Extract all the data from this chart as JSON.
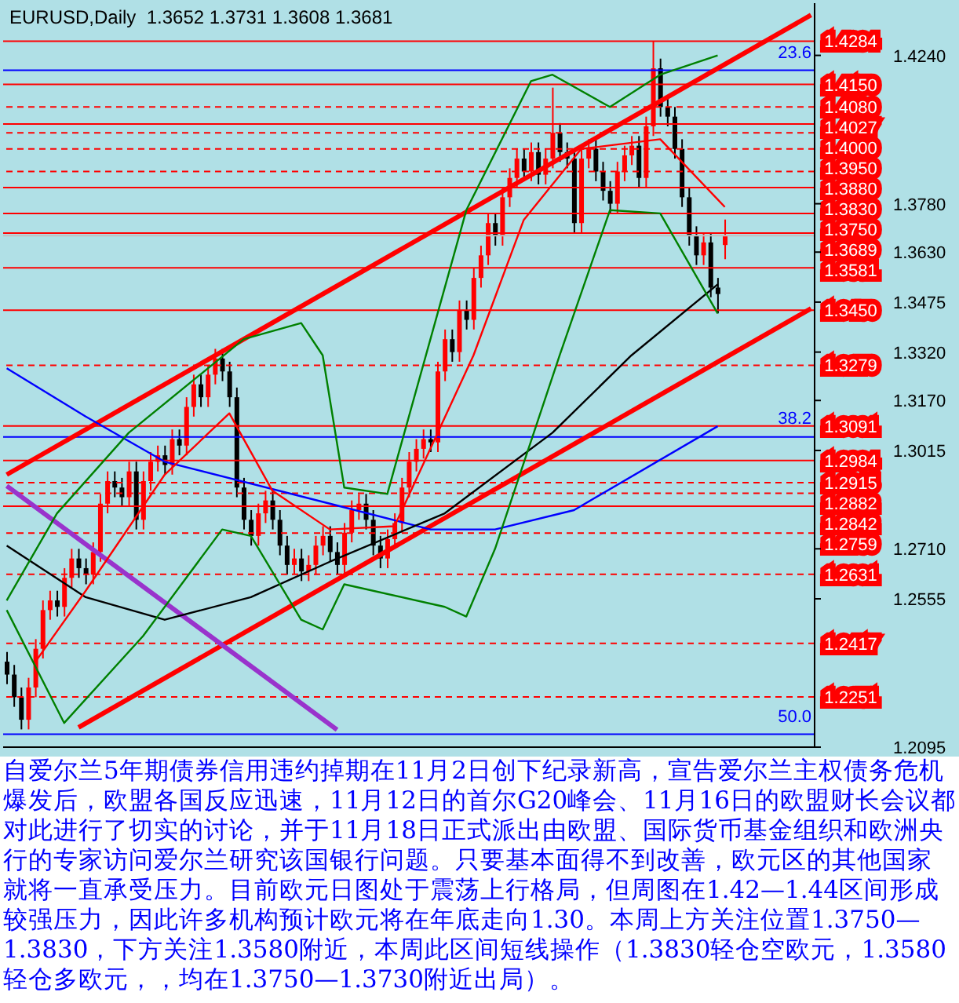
{
  "chart_data": {
    "type": "candlestick",
    "title": "EURUSD,Daily  1.3652 1.3731 1.3608 1.3681",
    "categories": [
      null,
      null,
      null,
      null,
      null,
      null,
      null,
      null,
      null,
      null,
      null,
      null,
      null,
      null,
      null,
      null,
      null,
      null,
      null,
      null,
      null,
      null,
      null,
      null,
      null,
      null,
      null,
      null,
      null,
      null,
      null,
      null,
      null,
      null,
      null,
      null,
      null,
      null,
      null,
      null,
      null,
      null,
      null,
      null,
      null,
      null,
      null,
      null,
      null,
      null,
      null,
      null,
      null,
      null,
      null,
      null,
      null,
      null,
      null,
      null,
      null,
      null,
      null,
      null,
      null,
      null,
      null,
      null,
      null,
      null,
      null,
      null,
      null,
      null,
      null,
      null,
      null,
      null,
      null,
      null,
      null,
      null,
      null,
      null,
      null,
      null,
      null,
      null,
      null,
      null,
      null,
      null,
      null,
      null,
      null,
      null,
      null,
      null,
      null,
      null,
      null,
      null,
      null,
      null,
      null,
      null,
      null,
      null,
      null,
      null,
      null,
      null,
      null
    ],
    "ohlc": [
      [
        1.236,
        1.239,
        1.229,
        1.232
      ],
      [
        1.232,
        1.235,
        1.222,
        1.225
      ],
      [
        1.225,
        1.228,
        1.215,
        1.218
      ],
      [
        1.218,
        1.231,
        1.215,
        1.228
      ],
      [
        1.228,
        1.243,
        1.225,
        1.24
      ],
      [
        1.24,
        1.255,
        1.237,
        1.252
      ],
      [
        1.252,
        1.258,
        1.249,
        1.255
      ],
      [
        1.255,
        1.258,
        1.25,
        1.253
      ],
      [
        1.253,
        1.265,
        1.25,
        1.262
      ],
      [
        1.262,
        1.271,
        1.259,
        1.268
      ],
      [
        1.268,
        1.271,
        1.262,
        1.265
      ],
      [
        1.265,
        1.268,
        1.26,
        1.263
      ],
      [
        1.263,
        1.273,
        1.26,
        1.27
      ],
      [
        1.27,
        1.288,
        1.267,
        1.285
      ],
      [
        1.285,
        1.295,
        1.282,
        1.292
      ],
      [
        1.292,
        1.295,
        1.287,
        1.29
      ],
      [
        1.29,
        1.293,
        1.284,
        1.287
      ],
      [
        1.287,
        1.298,
        1.284,
        1.295
      ],
      [
        1.295,
        1.298,
        1.277,
        1.28
      ],
      [
        1.28,
        1.295,
        1.277,
        1.292
      ],
      [
        1.292,
        1.301,
        1.289,
        1.298
      ],
      [
        1.298,
        1.303,
        1.295,
        1.3
      ],
      [
        1.3,
        1.303,
        1.294,
        1.297
      ],
      [
        1.297,
        1.308,
        1.294,
        1.305
      ],
      [
        1.305,
        1.308,
        1.3,
        1.303
      ],
      [
        1.303,
        1.318,
        1.3,
        1.315
      ],
      [
        1.315,
        1.325,
        1.312,
        1.322
      ],
      [
        1.322,
        1.325,
        1.315,
        1.318
      ],
      [
        1.318,
        1.328,
        1.315,
        1.325
      ],
      [
        1.325,
        1.333,
        1.322,
        1.33
      ],
      [
        1.33,
        1.333,
        1.323,
        1.326
      ],
      [
        1.326,
        1.329,
        1.315,
        1.318
      ],
      [
        1.318,
        1.321,
        1.287,
        1.29
      ],
      [
        1.29,
        1.293,
        1.277,
        1.28
      ],
      [
        1.28,
        1.283,
        1.272,
        1.275
      ],
      [
        1.275,
        1.285,
        1.272,
        1.282
      ],
      [
        1.282,
        1.289,
        1.279,
        1.286
      ],
      [
        1.286,
        1.289,
        1.277,
        1.28
      ],
      [
        1.28,
        1.283,
        1.269,
        1.272
      ],
      [
        1.272,
        1.275,
        1.263,
        1.266
      ],
      [
        1.266,
        1.271,
        1.263,
        1.268
      ],
      [
        1.268,
        1.271,
        1.261,
        1.264
      ],
      [
        1.264,
        1.269,
        1.261,
        1.266
      ],
      [
        1.266,
        1.275,
        1.263,
        1.272
      ],
      [
        1.272,
        1.278,
        1.269,
        1.275
      ],
      [
        1.275,
        1.278,
        1.267,
        1.27
      ],
      [
        1.27,
        1.273,
        1.263,
        1.266
      ],
      [
        1.266,
        1.279,
        1.263,
        1.276
      ],
      [
        1.276,
        1.286,
        1.273,
        1.283
      ],
      [
        1.283,
        1.288,
        1.28,
        1.285
      ],
      [
        1.285,
        1.288,
        1.277,
        1.28
      ],
      [
        1.28,
        1.283,
        1.269,
        1.272
      ],
      [
        1.272,
        1.275,
        1.265,
        1.268
      ],
      [
        1.268,
        1.277,
        1.265,
        1.274
      ],
      [
        1.274,
        1.282,
        1.271,
        1.279
      ],
      [
        1.279,
        1.293,
        1.276,
        1.29
      ],
      [
        1.29,
        1.301,
        1.287,
        1.298
      ],
      [
        1.298,
        1.305,
        1.295,
        1.302
      ],
      [
        1.302,
        1.308,
        1.299,
        1.305
      ],
      [
        1.305,
        1.308,
        1.301,
        1.304
      ],
      [
        1.304,
        1.329,
        1.301,
        1.326
      ],
      [
        1.326,
        1.339,
        1.323,
        1.336
      ],
      [
        1.336,
        1.339,
        1.329,
        1.332
      ],
      [
        1.332,
        1.348,
        1.329,
        1.345
      ],
      [
        1.345,
        1.348,
        1.339,
        1.342
      ],
      [
        1.342,
        1.358,
        1.339,
        1.355
      ],
      [
        1.355,
        1.365,
        1.352,
        1.362
      ],
      [
        1.362,
        1.375,
        1.359,
        1.372
      ],
      [
        1.372,
        1.375,
        1.365,
        1.368
      ],
      [
        1.368,
        1.383,
        1.365,
        1.38
      ],
      [
        1.38,
        1.389,
        1.377,
        1.386
      ],
      [
        1.386,
        1.395,
        1.383,
        1.392
      ],
      [
        1.392,
        1.395,
        1.385,
        1.388
      ],
      [
        1.388,
        1.397,
        1.385,
        1.394
      ],
      [
        1.394,
        1.397,
        1.384,
        1.387
      ],
      [
        1.387,
        1.395,
        1.384,
        1.392
      ],
      [
        1.392,
        1.414,
        1.389,
        1.4
      ],
      [
        1.4,
        1.403,
        1.391,
        1.394
      ],
      [
        1.394,
        1.397,
        1.389,
        1.392
      ],
      [
        1.392,
        1.395,
        1.369,
        1.372
      ],
      [
        1.372,
        1.395,
        1.369,
        1.392
      ],
      [
        1.392,
        1.398,
        1.389,
        1.395
      ],
      [
        1.395,
        1.398,
        1.385,
        1.388
      ],
      [
        1.388,
        1.391,
        1.379,
        1.382
      ],
      [
        1.382,
        1.385,
        1.375,
        1.378
      ],
      [
        1.378,
        1.391,
        1.375,
        1.388
      ],
      [
        1.388,
        1.396,
        1.385,
        1.393
      ],
      [
        1.393,
        1.399,
        1.39,
        1.396
      ],
      [
        1.396,
        1.399,
        1.383,
        1.386
      ],
      [
        1.386,
        1.405,
        1.383,
        1.402
      ],
      [
        1.402,
        1.4284,
        1.399,
        1.42
      ],
      [
        1.42,
        1.423,
        1.405,
        1.408
      ],
      [
        1.408,
        1.411,
        1.402,
        1.405
      ],
      [
        1.405,
        1.408,
        1.392,
        1.395
      ],
      [
        1.395,
        1.398,
        1.377,
        1.38
      ],
      [
        1.38,
        1.383,
        1.365,
        1.368
      ],
      [
        1.368,
        1.371,
        1.359,
        1.362
      ],
      [
        1.362,
        1.369,
        1.359,
        1.366
      ],
      [
        1.366,
        1.369,
        1.349,
        1.352
      ],
      [
        1.352,
        1.355,
        1.344,
        1.35
      ],
      [
        1.3652,
        1.3731,
        1.3608,
        1.3681
      ],
      null,
      null,
      null,
      null,
      null,
      null,
      null,
      null,
      null,
      null,
      null,
      null
    ],
    "series": [
      {
        "type": "line",
        "color": "#0000ff",
        "values": [
          1.327,
          null,
          null,
          null,
          null,
          null,
          null,
          null,
          null,
          null,
          null,
          1.312,
          null,
          null,
          null,
          null,
          null,
          null,
          null,
          null,
          null,
          null,
          1.298,
          null,
          null,
          null,
          null,
          null,
          null,
          null,
          null,
          null,
          null,
          null,
          null,
          null,
          null,
          null,
          null,
          null,
          null,
          null,
          null,
          null,
          null,
          1.285,
          null,
          null,
          null,
          null,
          null,
          null,
          null,
          null,
          null,
          null,
          null,
          null,
          null,
          1.277,
          null,
          null,
          null,
          null,
          null,
          null,
          null,
          null,
          1.277,
          null,
          null,
          null,
          null,
          null,
          null,
          null,
          null,
          null,
          null,
          1.283,
          null,
          null,
          null,
          null,
          null,
          null,
          null,
          null,
          null,
          null,
          null,
          null,
          null,
          null,
          null,
          null,
          null,
          null,
          null,
          1.309,
          null,
          null,
          null,
          null,
          null,
          null,
          null,
          null,
          null,
          null,
          null,
          null,
          null
        ]
      },
      {
        "type": "line",
        "color": "#000000",
        "values": [
          1.272,
          null,
          null,
          null,
          null,
          null,
          null,
          null,
          null,
          null,
          null,
          1.256,
          null,
          null,
          null,
          null,
          null,
          null,
          null,
          null,
          null,
          null,
          1.249,
          null,
          null,
          null,
          null,
          null,
          null,
          null,
          null,
          null,
          null,
          null,
          1.256,
          null,
          null,
          null,
          null,
          null,
          null,
          null,
          null,
          null,
          null,
          1.267,
          null,
          null,
          null,
          null,
          null,
          null,
          null,
          null,
          null,
          null,
          null,
          null,
          null,
          null,
          null,
          1.282,
          null,
          null,
          null,
          null,
          null,
          null,
          null,
          null,
          null,
          null,
          null,
          null,
          null,
          null,
          1.307,
          null,
          null,
          null,
          null,
          null,
          null,
          null,
          null,
          null,
          null,
          1.331,
          null,
          null,
          null,
          null,
          null,
          null,
          null,
          null,
          null,
          null,
          null,
          1.353,
          null,
          null,
          null,
          null,
          null,
          null,
          null,
          null,
          null,
          null,
          null,
          null,
          null
        ]
      },
      {
        "type": "line",
        "color": "#008000",
        "values": [
          1.255,
          null,
          null,
          null,
          null,
          null,
          null,
          1.282,
          null,
          null,
          null,
          null,
          null,
          null,
          null,
          null,
          null,
          1.307,
          null,
          null,
          null,
          null,
          null,
          null,
          null,
          null,
          null,
          null,
          null,
          null,
          null,
          null,
          null,
          1.336,
          null,
          null,
          null,
          null,
          null,
          null,
          null,
          1.341,
          null,
          null,
          1.331,
          null,
          null,
          1.29,
          null,
          null,
          null,
          null,
          null,
          1.288,
          null,
          null,
          null,
          null,
          null,
          null,
          null,
          null,
          null,
          null,
          1.376,
          null,
          null,
          null,
          null,
          null,
          null,
          null,
          null,
          1.416,
          null,
          null,
          1.418,
          null,
          null,
          null,
          null,
          null,
          null,
          null,
          1.408,
          null,
          null,
          null,
          null,
          null,
          null,
          1.418,
          null,
          null,
          null,
          null,
          null,
          null,
          null,
          1.424,
          null,
          null,
          null,
          null,
          null,
          null,
          null,
          null,
          null,
          null,
          null,
          null,
          null
        ]
      },
      {
        "type": "line",
        "color": "#008000",
        "values": [
          1.252,
          null,
          null,
          null,
          null,
          null,
          null,
          null,
          1.217,
          null,
          null,
          null,
          null,
          null,
          null,
          null,
          null,
          null,
          null,
          1.244,
          null,
          null,
          null,
          null,
          null,
          null,
          null,
          null,
          null,
          null,
          1.277,
          null,
          null,
          null,
          1.275,
          null,
          null,
          null,
          null,
          null,
          null,
          1.249,
          null,
          null,
          1.246,
          null,
          null,
          1.26,
          null,
          null,
          null,
          null,
          null,
          null,
          null,
          null,
          null,
          null,
          null,
          null,
          null,
          1.253,
          null,
          null,
          1.25,
          null,
          null,
          null,
          1.271,
          null,
          null,
          null,
          null,
          null,
          null,
          null,
          null,
          1.331,
          null,
          null,
          null,
          null,
          null,
          null,
          1.376,
          null,
          null,
          null,
          null,
          null,
          null,
          1.375,
          null,
          null,
          null,
          null,
          null,
          null,
          null,
          1.344,
          null,
          null,
          null,
          null,
          null,
          null,
          null,
          null,
          null,
          null,
          null,
          null,
          null
        ]
      },
      {
        "type": "line",
        "color": "#ff0000",
        "values": [
          null,
          null,
          null,
          null,
          1.236,
          null,
          null,
          null,
          null,
          null,
          null,
          1.258,
          null,
          null,
          null,
          null,
          null,
          null,
          null,
          null,
          null,
          null,
          1.294,
          null,
          null,
          null,
          null,
          null,
          null,
          null,
          null,
          1.313,
          null,
          null,
          null,
          null,
          null,
          1.289,
          null,
          null,
          null,
          null,
          null,
          null,
          null,
          1.277,
          null,
          null,
          null,
          null,
          null,
          null,
          null,
          null,
          1.278,
          null,
          null,
          null,
          null,
          null,
          null,
          null,
          null,
          null,
          null,
          1.331,
          null,
          null,
          null,
          null,
          null,
          null,
          1.373,
          null,
          null,
          null,
          null,
          null,
          null,
          null,
          1.395,
          null,
          null,
          null,
          null,
          null,
          null,
          null,
          null,
          null,
          null,
          1.398,
          null,
          null,
          null,
          null,
          null,
          null,
          null,
          null,
          1.377,
          null,
          null,
          null,
          null,
          null,
          null,
          null,
          null,
          null,
          null,
          null,
          null
        ]
      },
      {
        "type": "line",
        "color": "#ff0000",
        "values": [
          1.294,
          null,
          null,
          null,
          null,
          null,
          null,
          null,
          null,
          null,
          null,
          null,
          null,
          null,
          null,
          null,
          null,
          null,
          null,
          null,
          null,
          null,
          null,
          null,
          null,
          null,
          null,
          null,
          null,
          null,
          null,
          null,
          null,
          null,
          null,
          null,
          null,
          null,
          null,
          null,
          null,
          null,
          null,
          null,
          null,
          null,
          null,
          null,
          null,
          null,
          null,
          null,
          null,
          null,
          null,
          null,
          null,
          null,
          null,
          null,
          null,
          null,
          null,
          null,
          null,
          null,
          null,
          null,
          null,
          null,
          null,
          null,
          null,
          null,
          null,
          null,
          null,
          null,
          null,
          null,
          null,
          null,
          null,
          null,
          null,
          null,
          null,
          null,
          null,
          null,
          null,
          null,
          null,
          null,
          null,
          null,
          null,
          null,
          null,
          null,
          null,
          null,
          null,
          null,
          null,
          null,
          null,
          null,
          null,
          null,
          null,
          null,
          1.4365
        ]
      },
      {
        "type": "line",
        "color": "#ff0000",
        "values": [
          null,
          null,
          null,
          null,
          null,
          null,
          null,
          null,
          null,
          null,
          1.2156,
          null,
          null,
          null,
          null,
          null,
          null,
          null,
          null,
          null,
          null,
          null,
          null,
          null,
          null,
          null,
          null,
          null,
          null,
          null,
          null,
          null,
          null,
          null,
          null,
          null,
          null,
          null,
          null,
          null,
          null,
          null,
          null,
          null,
          null,
          null,
          null,
          null,
          null,
          null,
          null,
          null,
          null,
          null,
          null,
          null,
          null,
          null,
          null,
          null,
          null,
          null,
          null,
          null,
          null,
          null,
          null,
          null,
          null,
          null,
          null,
          null,
          null,
          null,
          null,
          null,
          null,
          null,
          null,
          null,
          null,
          null,
          null,
          null,
          null,
          null,
          null,
          null,
          null,
          null,
          null,
          null,
          null,
          null,
          null,
          null,
          null,
          null,
          null,
          null,
          null,
          null,
          null,
          null,
          null,
          null,
          null,
          null,
          null,
          null,
          null,
          null,
          1.3455
        ]
      },
      {
        "type": "line",
        "color": "#9933cc",
        "values": [
          1.2905,
          null,
          null,
          null,
          null,
          null,
          null,
          null,
          null,
          null,
          null,
          null,
          null,
          null,
          null,
          null,
          null,
          null,
          null,
          null,
          null,
          null,
          null,
          null,
          null,
          null,
          null,
          null,
          null,
          null,
          null,
          null,
          null,
          null,
          null,
          null,
          null,
          null,
          null,
          null,
          null,
          null,
          null,
          null,
          null,
          null,
          1.2149,
          null,
          null,
          null,
          null,
          null,
          null,
          null,
          null,
          null,
          null,
          null,
          null,
          null,
          null,
          null,
          null,
          null,
          null,
          null,
          null,
          null,
          null,
          null,
          null,
          null,
          null,
          null,
          null,
          null,
          null,
          null,
          null,
          null,
          null,
          null,
          null,
          null,
          null,
          null,
          null,
          null,
          null,
          null,
          null,
          null,
          null,
          null,
          null,
          null,
          null,
          null,
          null,
          null,
          null,
          null,
          null,
          null,
          null,
          null,
          null,
          null,
          null,
          null,
          null,
          null,
          null
        ]
      }
    ],
    "ylim": [
      1.2095,
      1.4402
    ],
    "yticks": [
      {
        "value": 1.424,
        "label": "1.4240"
      },
      {
        "value": 1.378,
        "label": "1.3780"
      },
      {
        "value": 1.363,
        "label": "1.3630"
      },
      1.3475,
      {
        "value": 1.332,
        "label": "1.3320"
      },
      {
        "value": 1.317,
        "label": "1.3170"
      },
      1.3015,
      {
        "value": 1.271,
        "label": "1.2710"
      },
      1.2555,
      1.2095
    ],
    "tick_labels": "y",
    "ref_lines": [
      {
        "axis": "y",
        "value": 1.4284,
        "label": "1.4284",
        "color": "#ff0000",
        "line_style": "solid"
      },
      {
        "axis": "y",
        "value": 1.415,
        "label": "1.4150",
        "color": "#ff0000",
        "line_style": "solid"
      },
      {
        "axis": "y",
        "value": 1.408,
        "label": "1.4080",
        "color": "#ff0000",
        "line_style": "dashed"
      },
      {
        "axis": "y",
        "value": 1.4027,
        "label": "1.4027",
        "color": "#ff0000",
        "line_style": "solid"
      },
      {
        "axis": "y",
        "value": 1.4,
        "label": "1.4000",
        "color": "#ff0000",
        "line_style": "dashed"
      },
      {
        "axis": "y",
        "value": 1.395,
        "label": "1.3950",
        "color": "#ff0000",
        "line_style": "dashed"
      },
      {
        "axis": "y",
        "value": 1.388,
        "label": "1.3880",
        "color": "#ff0000",
        "line_style": "dashed"
      },
      {
        "axis": "y",
        "value": 1.383,
        "label": "1.3830",
        "color": "#ff0000",
        "line_style": "solid"
      },
      {
        "axis": "y",
        "value": 1.375,
        "label": "1.3750",
        "color": "#ff0000",
        "line_style": "solid"
      },
      {
        "axis": "y",
        "value": 1.3689,
        "label": "1.3689",
        "color": "#ff0000",
        "line_style": "solid"
      },
      {
        "axis": "y",
        "value": 1.3681,
        "color": "#c0c0c0",
        "line_style": "solid"
      },
      {
        "axis": "y",
        "value": 1.3581,
        "label": "1.3581",
        "color": "#ff0000",
        "line_style": "solid"
      },
      {
        "axis": "y",
        "value": 1.345,
        "label": "1.3450",
        "color": "#ff0000",
        "line_style": "solid"
      },
      {
        "axis": "y",
        "value": 1.3279,
        "label": "1.3279",
        "color": "#ff0000",
        "line_style": "dashed"
      },
      {
        "axis": "y",
        "value": 1.3091,
        "label": "1.3091",
        "color": "#ff0000",
        "line_style": "solid"
      },
      {
        "axis": "y",
        "value": 1.2984,
        "label": "1.2984",
        "color": "#ff0000",
        "line_style": "solid"
      },
      {
        "axis": "y",
        "value": 1.2915,
        "label": "1.2915",
        "color": "#ff0000",
        "line_style": "dashed"
      },
      {
        "axis": "y",
        "value": 1.2882,
        "label": "1.2882",
        "color": "#ff0000",
        "line_style": "dashed"
      },
      {
        "axis": "y",
        "value": 1.2842,
        "label": "1.2842",
        "color": "#ff0000",
        "line_style": "solid"
      },
      {
        "axis": "y",
        "value": 1.2759,
        "label": "1.2759",
        "color": "#ff0000",
        "line_style": "dashed"
      },
      {
        "axis": "y",
        "value": 1.2631,
        "label": "1.2631",
        "color": "#ff0000",
        "line_style": "dashed"
      },
      {
        "axis": "y",
        "value": 1.2417,
        "label": "1.2417",
        "color": "#ff0000",
        "line_style": "dashed"
      },
      {
        "axis": "y",
        "value": 1.2251,
        "label": "1.2251",
        "color": "#ff0000",
        "line_style": "dashed"
      },
      {
        "axis": "y",
        "value": 1.4194,
        "color": "#0000ff",
        "line_style": "solid"
      },
      {
        "axis": "y",
        "value": 1.3057,
        "color": "#0000ff",
        "line_style": "solid"
      },
      {
        "axis": "y",
        "value": 1.2135,
        "color": "#0000ff",
        "line_style": "solid"
      }
    ],
    "annotations": [
      {
        "text": "23.6",
        "y": 1.4194
      },
      {
        "text": "38.2",
        "y": 1.3057
      },
      {
        "text": "50.0",
        "y": 1.2135
      },
      "自爱尔兰5年期债券信用违约掉期在11月2日创下纪录新高，宣告爱尔兰主权债务危机爆发后，欧盟各国反应迅速，11月12日的首尔G20峰会、11月16日的欧盟财长会议都对此进行了切实的讨论，并于11月18日正式派出由欧盟、国际货币基金组织和欧洲央行的专家访问爱尔兰研究该国银行问题。只要基本面得不到改善，欧元区的其他国家就将一直承受压力。目前欧元日图处于震荡上行格局，但周图在1.42—1.44区间形成较强压力，因此许多机构预计欧元将在年底走向1.30。本周上方关注位置1.3750—1.3830，下方关注1.3580附近，本周此区间短线操作（1.3830轻仓空欧元，1.3580轻仓多欧元，，均在1.3750—1.3730附近出局）。"
    ]
  }
}
